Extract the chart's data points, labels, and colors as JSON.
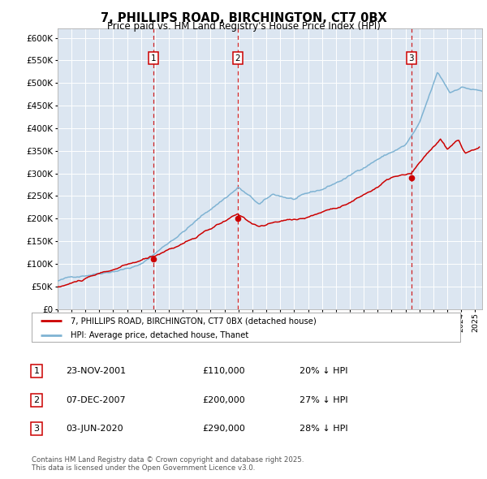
{
  "title": "7, PHILLIPS ROAD, BIRCHINGTON, CT7 0BX",
  "subtitle": "Price paid vs. HM Land Registry's House Price Index (HPI)",
  "background_color": "#ffffff",
  "plot_bg_color": "#dce6f1",
  "grid_color": "#ffffff",
  "hpi_color": "#7fb3d3",
  "price_color": "#cc0000",
  "vline_color": "#cc0000",
  "ylim_min": 0,
  "ylim_max": 620000,
  "sales": [
    {
      "date_num": 2001.9,
      "price": 110000,
      "label": "1"
    },
    {
      "date_num": 2007.93,
      "price": 200000,
      "label": "2"
    },
    {
      "date_num": 2020.42,
      "price": 290000,
      "label": "3"
    }
  ],
  "legend_entries": [
    "7, PHILLIPS ROAD, BIRCHINGTON, CT7 0BX (detached house)",
    "HPI: Average price, detached house, Thanet"
  ],
  "table_rows": [
    {
      "num": "1",
      "date": "23-NOV-2001",
      "price": "£110,000",
      "hpi": "20% ↓ HPI"
    },
    {
      "num": "2",
      "date": "07-DEC-2007",
      "price": "£200,000",
      "hpi": "27% ↓ HPI"
    },
    {
      "num": "3",
      "date": "03-JUN-2020",
      "price": "£290,000",
      "hpi": "28% ↓ HPI"
    }
  ],
  "footnote": "Contains HM Land Registry data © Crown copyright and database right 2025.\nThis data is licensed under the Open Government Licence v3.0.",
  "xmin": 1995.0,
  "xmax": 2025.5
}
